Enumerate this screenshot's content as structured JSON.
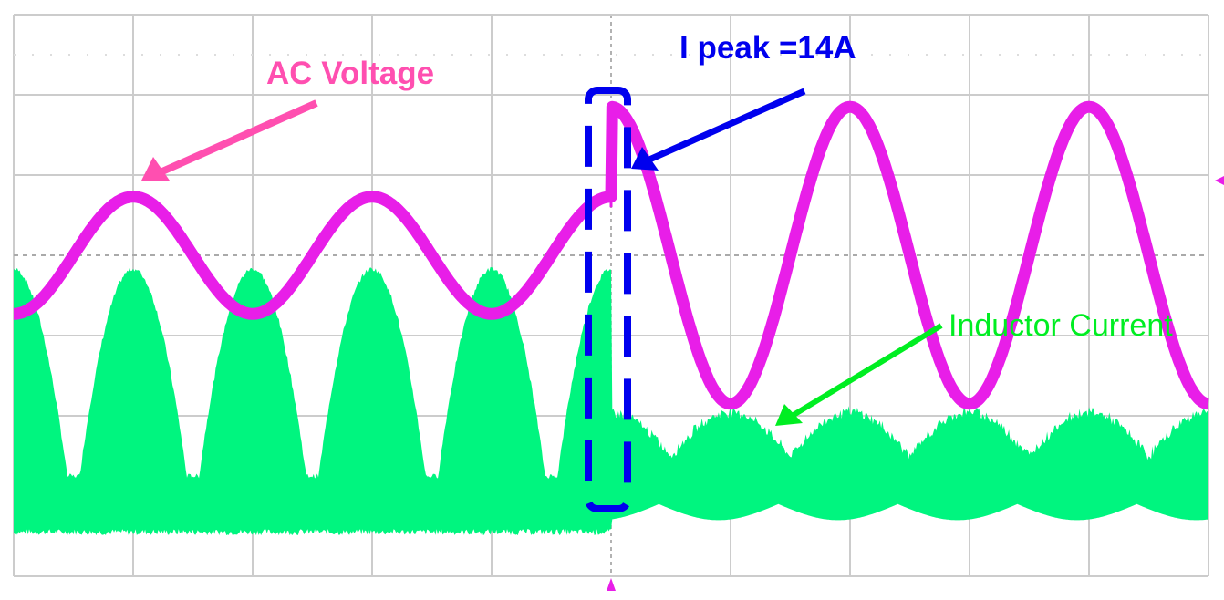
{
  "chart_data": {
    "type": "line",
    "title": "",
    "xlabel": "",
    "ylabel": "",
    "x_unit": "divisions",
    "y_unit": "divisions",
    "xlim": [
      0,
      10
    ],
    "ylim": [
      -4,
      3
    ],
    "grid": true,
    "trigger_position_div": 5.0,
    "series": [
      {
        "key": "voltage",
        "color": "#e81ee8",
        "segments": [
          {
            "x_range": [
              0,
              5
            ],
            "period_div": 2.0,
            "first_peak_div": 1.0,
            "offset_div": 0.0,
            "amplitude_div": 0.73
          },
          {
            "x_range": [
              5,
              10
            ],
            "period_div": 2.0,
            "first_peak_div": 5.0,
            "offset_div": 0.0,
            "amplitude_div": 1.85
          }
        ]
      },
      {
        "key": "current",
        "color": "#00f57f",
        "segments": [
          {
            "x_range": [
              0,
              5
            ],
            "envelope_top_peak_div": -0.17,
            "envelope_bottom_div": -3.45,
            "hump_period_div": 1.0
          },
          {
            "x_range": [
              5,
              10
            ],
            "envelope_top_peak_div": -1.95,
            "envelope_top_valley_div": -2.5,
            "envelope_bottom_div": -3.3,
            "hump_period_div": 1.0
          }
        ]
      }
    ],
    "annotations": {
      "voltage_label": "AC Voltage",
      "voltage_color": "#ff4fb0",
      "peak_label": "I peak =14A",
      "peak_color": "#0000ee",
      "current_label": "Inductor Current",
      "current_color": "#00ee22"
    }
  }
}
